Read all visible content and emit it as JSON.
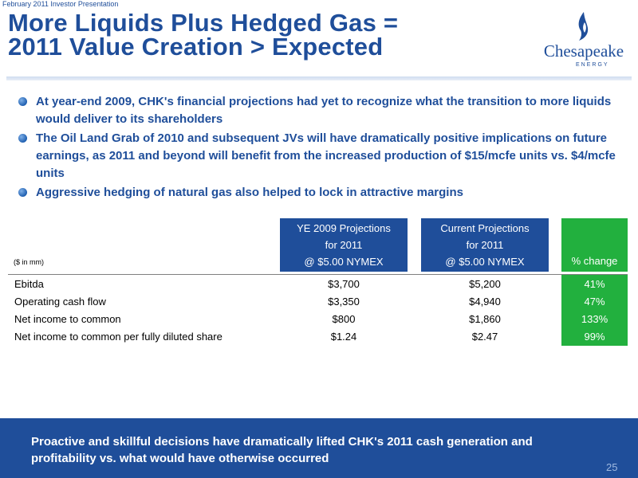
{
  "header": {
    "presentation_label": "February 2011 Investor Presentation",
    "title_line1": "More Liquids Plus Hedged Gas =",
    "title_line2": "2011 Value Creation > Expected"
  },
  "logo": {
    "word": "Chesapeake",
    "sub": "ENERGY",
    "icon": "flame-icon"
  },
  "bullets": [
    "At year-end 2009, CHK's financial projections had yet to recognize what the transition to more liquids would deliver to its shareholders",
    "The Oil Land Grab of 2010 and subsequent JVs will have dramatically positive implications on future earnings, as 2011 and beyond will benefit from the increased production of $15/mcfe units vs. $4/mcfe units",
    "Aggressive hedging of natural gas also helped to lock in attractive margins"
  ],
  "table": {
    "units_note": "($ in mm)",
    "col1": {
      "line1": "YE 2009 Projections",
      "line2": "for 2011",
      "line3": "@ $5.00 NYMEX"
    },
    "col2": {
      "line1": "Current Projections",
      "line2": "for 2011",
      "line3": "@ $5.00 NYMEX"
    },
    "col3": "% change",
    "rows": [
      {
        "label": "Ebitda",
        "ye2009": "$3,700",
        "current": "$5,200",
        "change": "41%"
      },
      {
        "label": "Operating cash flow",
        "ye2009": "$3,350",
        "current": "$4,940",
        "change": "47%"
      },
      {
        "label": "Net income to common",
        "ye2009": "$800",
        "current": "$1,860",
        "change": "133%"
      },
      {
        "label": "Net income to common per fully diluted share",
        "ye2009": "$1.24",
        "current": "$2.47",
        "change": "99%"
      }
    ]
  },
  "footer": {
    "text": "Proactive and skillful decisions have dramatically lifted CHK's 2011 cash generation and profitability vs. what would have otherwise occurred",
    "page_number": "25"
  },
  "colors": {
    "primary_blue": "#1f4e9a",
    "accent_green": "#22b03e"
  }
}
